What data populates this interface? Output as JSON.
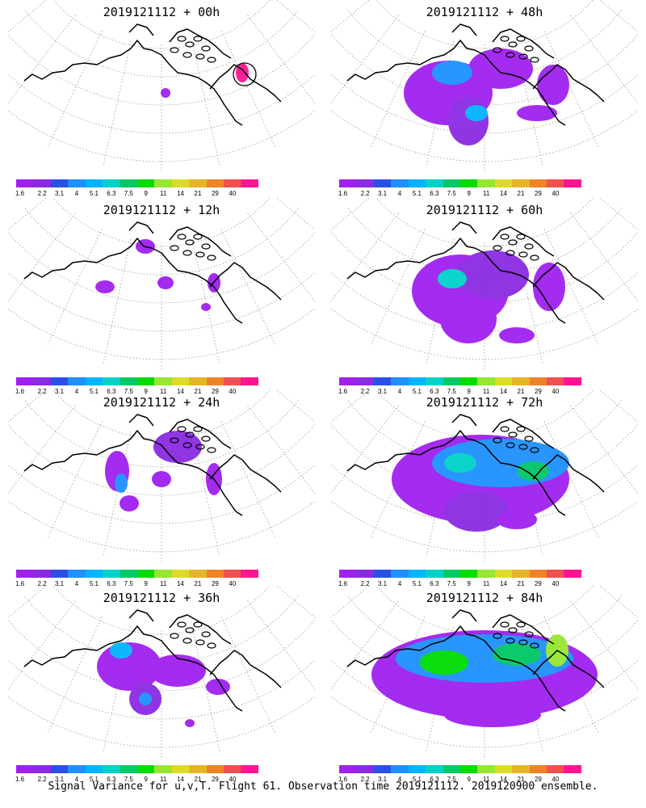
{
  "colorbar": {
    "colors": [
      "#a020f0",
      "#8a2be2",
      "#2a50e8",
      "#1e90ff",
      "#00b4ff",
      "#00d2c8",
      "#00c864",
      "#00dc00",
      "#96e632",
      "#dcdc28",
      "#e6b428",
      "#f08228",
      "#f05050",
      "#ff1493"
    ],
    "labels": [
      "1.6",
      "2.2",
      "3.1",
      "4",
      "5.1",
      "6.3",
      "7.5",
      "9",
      "11",
      "14",
      "21",
      "29",
      "40"
    ]
  },
  "panels": [
    {
      "title": "2019121112 + 00h"
    },
    {
      "title": "2019121112 + 48h"
    },
    {
      "title": "2019121112 + 12h"
    },
    {
      "title": "2019121112 + 60h"
    },
    {
      "title": "2019121112 + 24h"
    },
    {
      "title": "2019121112 + 72h"
    },
    {
      "title": "2019121112 + 36h"
    },
    {
      "title": "2019121112 + 84h"
    }
  ],
  "caption": "Signal Variance for u,v,T. Flight 61. Observation time 2019121112. 2019120900 ensemble."
}
